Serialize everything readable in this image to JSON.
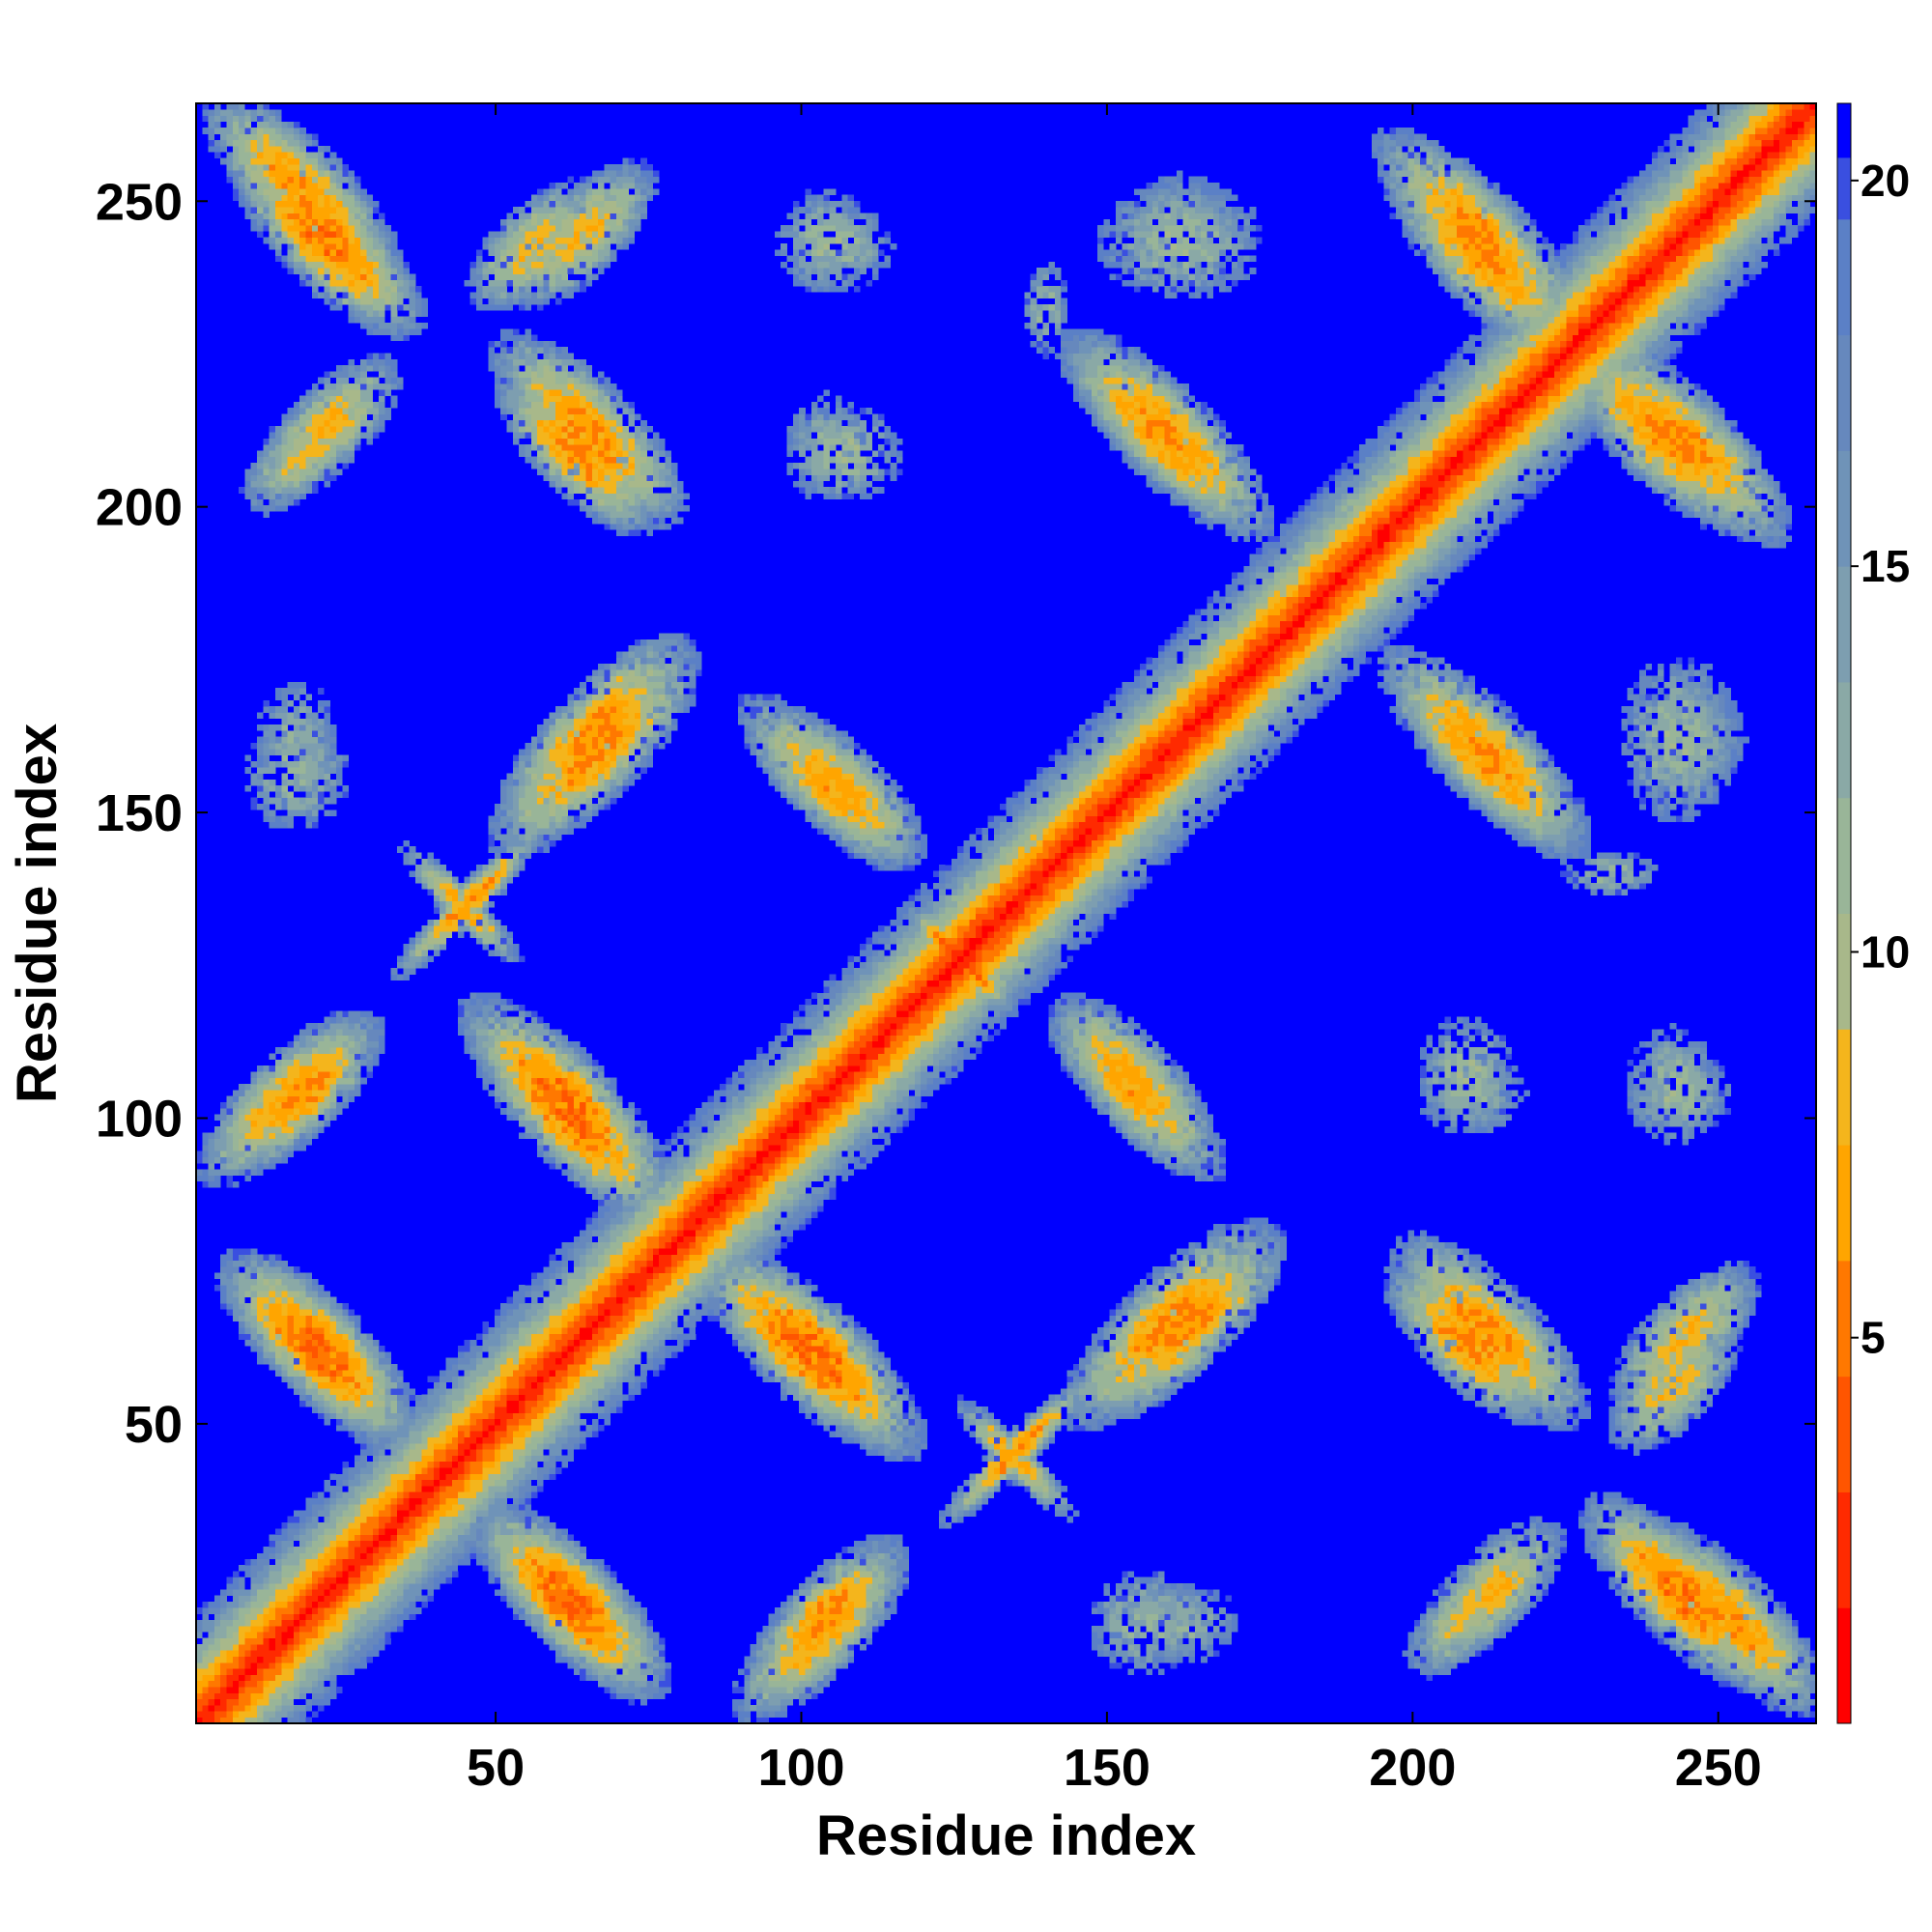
{
  "chart_data": {
    "type": "heatmap",
    "title": "",
    "xlabel": "Residue index",
    "ylabel": "Residue index",
    "xlim": [
      1,
      266
    ],
    "ylim": [
      1,
      266
    ],
    "n_residues": 266,
    "x_ticks": [
      50,
      100,
      150,
      200,
      250
    ],
    "y_ticks": [
      50,
      100,
      150,
      200,
      250
    ],
    "colorbar": {
      "range": [
        0,
        21
      ],
      "ticks": [
        5,
        10,
        15,
        20
      ],
      "colors": [
        {
          "upto": 1.5,
          "color": "#ff0000"
        },
        {
          "upto": 3.0,
          "color": "#ff2a00"
        },
        {
          "upto": 4.5,
          "color": "#ff5500"
        },
        {
          "upto": 6.0,
          "color": "#ff7800"
        },
        {
          "upto": 7.5,
          "color": "#ffa500"
        },
        {
          "upto": 9.0,
          "color": "#f4b51c"
        },
        {
          "upto": 10.5,
          "color": "#a8b88a"
        },
        {
          "upto": 12.0,
          "color": "#99b598"
        },
        {
          "upto": 13.5,
          "color": "#8aa9a6"
        },
        {
          "upto": 15.0,
          "color": "#7d9eb0"
        },
        {
          "upto": 16.5,
          "color": "#6f93b8"
        },
        {
          "upto": 18.0,
          "color": "#6688bd"
        },
        {
          "upto": 19.5,
          "color": "#5b80c6"
        },
        {
          "upto": 20.3,
          "color": "#3a4fe0"
        },
        {
          "upto": 21.0,
          "color": "#0000ff"
        }
      ]
    },
    "background_color": "#0000ff",
    "diagonal_band": {
      "center_value": 1,
      "half_width_residues": 18
    },
    "contact_patches": [
      {
        "kind": "anti",
        "center": [
          18,
          252
        ],
        "along": 22,
        "across": 8,
        "min_value": 6
      },
      {
        "kind": "parallel",
        "center": [
          56,
          243
        ],
        "along": 14,
        "across": 7,
        "min_value": 8
      },
      {
        "kind": "parallel",
        "center": [
          18,
          209
        ],
        "along": 13,
        "across": 6,
        "min_value": 9
      },
      {
        "kind": "anti",
        "center": [
          63,
          209
        ],
        "along": 18,
        "across": 7,
        "min_value": 6
      },
      {
        "kind": "patchy",
        "center": [
          105,
          243
        ],
        "along": 10,
        "across": 8,
        "min_value": 11
      },
      {
        "kind": "patchy",
        "center": [
          107,
          209
        ],
        "along": 10,
        "across": 8,
        "min_value": 11
      },
      {
        "kind": "patchy",
        "center": [
          162,
          244
        ],
        "along": 14,
        "across": 10,
        "min_value": 11
      },
      {
        "kind": "anti",
        "center": [
          160,
          212
        ],
        "along": 24,
        "across": 8,
        "min_value": 6
      },
      {
        "kind": "anti",
        "center": [
          211,
          245
        ],
        "along": 24,
        "across": 8,
        "min_value": 6
      },
      {
        "kind": "anti",
        "center": [
          241,
          212
        ],
        "along": 22,
        "across": 8,
        "min_value": 6
      },
      {
        "kind": "parallel",
        "center": [
          66,
          164
        ],
        "along": 22,
        "across": 7,
        "min_value": 6
      },
      {
        "kind": "patchy",
        "center": [
          17,
          156
        ],
        "along": 9,
        "across": 9,
        "min_value": 12
      },
      {
        "kind": "anti",
        "center": [
          107,
          154
        ],
        "along": 18,
        "across": 7,
        "min_value": 7
      },
      {
        "kind": "parallel",
        "center": [
          45,
          135
        ],
        "along": 18,
        "across": 3,
        "min_value": 6
      },
      {
        "kind": "anti",
        "center": [
          213,
          158
        ],
        "along": 22,
        "across": 7,
        "min_value": 7
      },
      {
        "kind": "patchy",
        "center": [
          245,
          162
        ],
        "along": 10,
        "across": 10,
        "min_value": 12
      },
      {
        "kind": "patchy",
        "center": [
          233,
          140
        ],
        "along": 8,
        "across": 4,
        "min_value": 12
      },
      {
        "kind": "anti",
        "center": [
          126,
          126
        ],
        "along": 13,
        "across": 2,
        "min_value": 3
      },
      {
        "kind": "parallel",
        "center": [
          15,
          103
        ],
        "along": 20,
        "across": 7,
        "min_value": 7
      },
      {
        "kind": "anti",
        "center": [
          62,
          100
        ],
        "along": 24,
        "across": 8,
        "min_value": 5
      },
      {
        "kind": "anti",
        "center": [
          155,
          104
        ],
        "along": 20,
        "across": 7,
        "min_value": 7
      },
      {
        "kind": "patchy",
        "center": [
          210,
          104
        ],
        "along": 9,
        "across": 7,
        "min_value": 12
      },
      {
        "kind": "patchy",
        "center": [
          244,
          104
        ],
        "along": 9,
        "across": 7,
        "min_value": 12
      },
      {
        "kind": "anti",
        "center": [
          20,
          62
        ],
        "along": 22,
        "across": 8,
        "min_value": 5
      },
      {
        "kind": "anti",
        "center": [
          103,
          61
        ],
        "along": 24,
        "across": 8,
        "min_value": 5
      },
      {
        "kind": "parallel",
        "center": [
          160,
          66
        ],
        "along": 24,
        "across": 8,
        "min_value": 6
      },
      {
        "kind": "anti",
        "center": [
          213,
          65
        ],
        "along": 22,
        "across": 8,
        "min_value": 6
      },
      {
        "kind": "parallel",
        "center": [
          245,
          64
        ],
        "along": 16,
        "across": 7,
        "min_value": 8
      },
      {
        "kind": "anti",
        "center": [
          135,
          44
        ],
        "along": 14,
        "across": 3,
        "min_value": 7
      },
      {
        "kind": "anti",
        "center": [
          62,
          21
        ],
        "along": 22,
        "across": 8,
        "min_value": 5
      },
      {
        "kind": "parallel",
        "center": [
          104,
          18
        ],
        "along": 18,
        "across": 7,
        "min_value": 6
      },
      {
        "kind": "patchy",
        "center": [
          161,
          17
        ],
        "along": 11,
        "across": 7,
        "min_value": 12
      },
      {
        "kind": "parallel",
        "center": [
          213,
          22
        ],
        "along": 16,
        "across": 7,
        "min_value": 8
      },
      {
        "kind": "anti",
        "center": [
          244,
          22
        ],
        "along": 22,
        "across": 8,
        "min_value": 5
      }
    ]
  }
}
